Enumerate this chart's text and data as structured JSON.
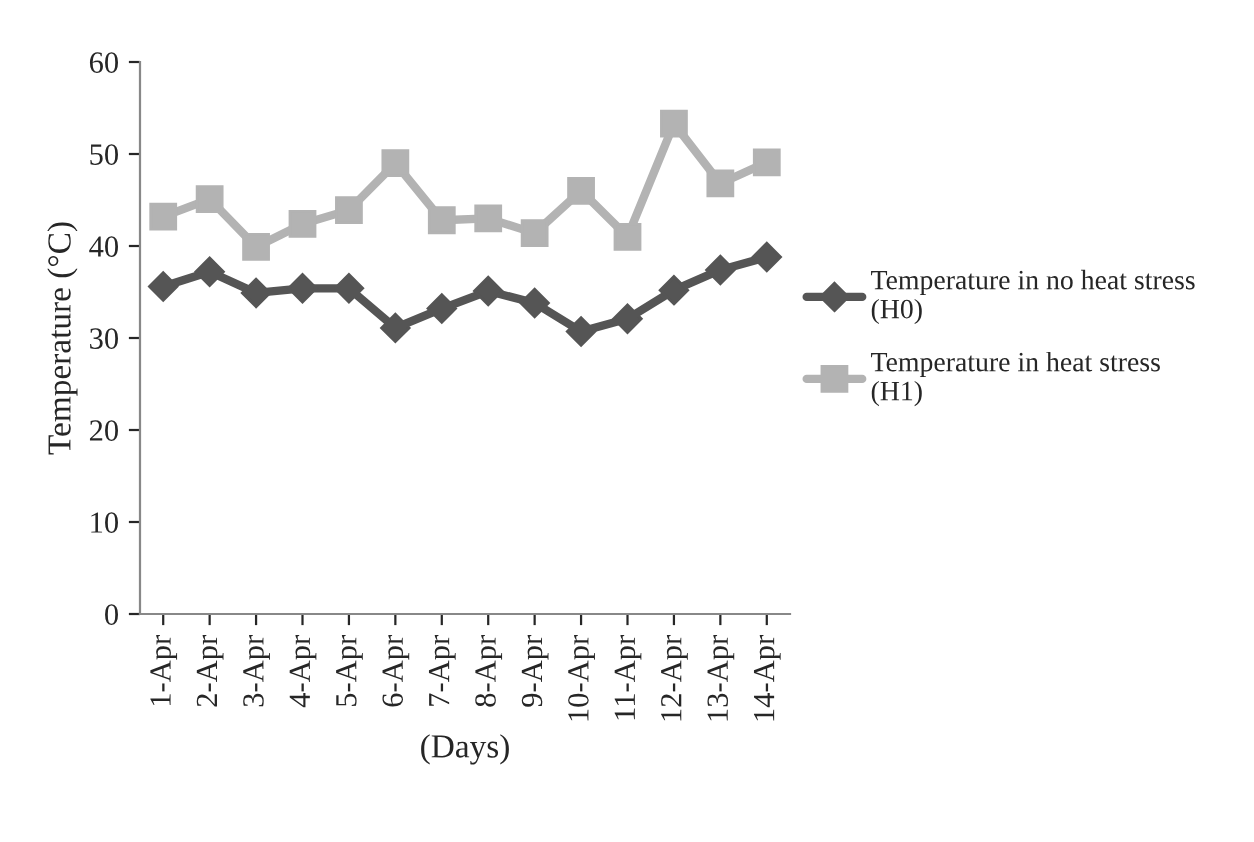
{
  "chart_data": {
    "type": "line",
    "xlabel": "(Days)",
    "ylabel": "Temperature (°C)",
    "categories": [
      "1-Apr",
      "2-Apr",
      "3-Apr",
      "4-Apr",
      "5-Apr",
      "6-Apr",
      "7-Apr",
      "8-Apr",
      "9-Apr",
      "10-Apr",
      "11-Apr",
      "12-Apr",
      "13-Apr",
      "14-Apr"
    ],
    "series": [
      {
        "name": "Temperature in no heat stress\n(H0)",
        "color": "#555555",
        "marker": "diamond",
        "values": [
          35.6,
          37.2,
          34.9,
          35.4,
          35.4,
          31.1,
          33.2,
          35.1,
          33.8,
          30.7,
          32.1,
          35.2,
          37.4,
          38.8
        ]
      },
      {
        "name": "Temperature in heat stress\n(H1)",
        "color": "#b3b3b3",
        "marker": "square",
        "values": [
          43.2,
          45.1,
          39.9,
          42.4,
          43.9,
          49.0,
          42.8,
          43.0,
          41.4,
          46.0,
          41.0,
          53.3,
          46.8,
          49.1
        ]
      }
    ],
    "ylim": [
      0,
      60
    ],
    "yticks": [
      0,
      10,
      20,
      30,
      40,
      50,
      60
    ],
    "grid": false,
    "legend": "right",
    "line_style": "solid"
  }
}
